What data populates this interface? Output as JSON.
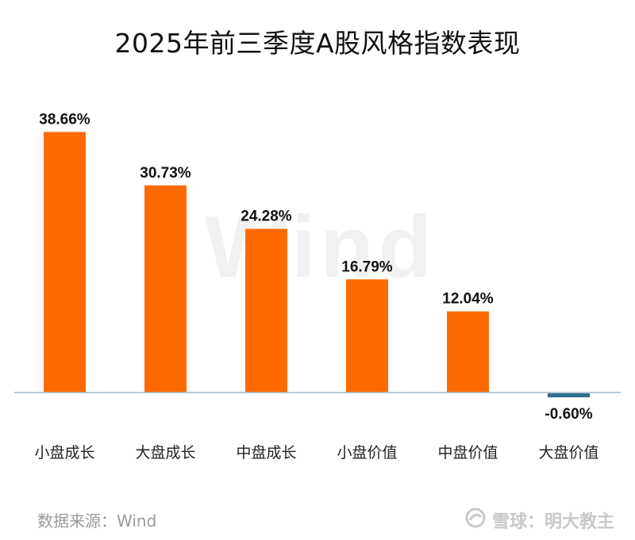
{
  "title": "2025年前三季度A股风格指数表现",
  "watermark": "Wind",
  "source": "数据来源：Wind",
  "brand": "雪球：明大教主",
  "colors": {
    "positive": "#ff6a00",
    "negative": "#2e6f8e",
    "axis": "#9fb9c8"
  },
  "chart_data": {
    "type": "bar",
    "title": "2025年前三季度A股风格指数表现",
    "categories": [
      "小盘成长",
      "大盘成长",
      "中盘成长",
      "小盘价值",
      "中盘价值",
      "大盘价值"
    ],
    "values": [
      38.66,
      30.73,
      24.28,
      16.79,
      12.04,
      -0.6
    ],
    "labels": [
      "38.66%",
      "30.73%",
      "24.28%",
      "16.79%",
      "12.04%",
      "-0.60%"
    ],
    "unit": "%",
    "xlabel": "",
    "ylabel": "",
    "grid": false
  }
}
